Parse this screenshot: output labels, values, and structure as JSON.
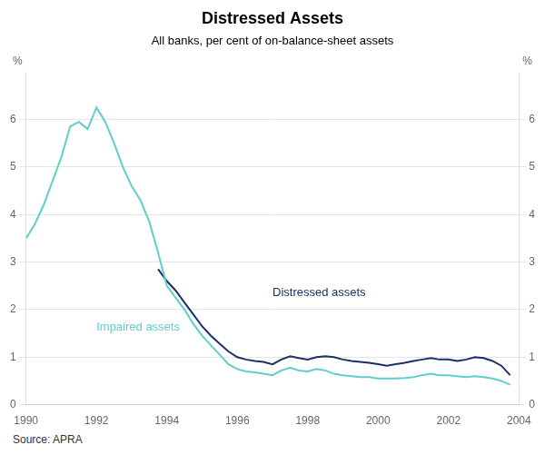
{
  "chart_data": {
    "type": "line",
    "title": "Distressed Assets",
    "subtitle": "All banks, per cent of on-balance-sheet assets",
    "source": "Source: APRA",
    "ylabel": "%",
    "y2label": "%",
    "xlim": [
      1990,
      2004
    ],
    "xticks": [
      1990,
      1992,
      1994,
      1996,
      1998,
      2000,
      2002,
      2004
    ],
    "ylim": [
      0,
      7
    ],
    "yticks": [
      0,
      1,
      2,
      3,
      4,
      5,
      6
    ],
    "y2lim": [
      0,
      7
    ],
    "y2ticks": [
      0,
      1,
      2,
      3,
      4,
      5,
      6
    ],
    "grid": true,
    "series": [
      {
        "name": "Impaired assets",
        "color": "#5ecfca",
        "x": [
          1990.0,
          1990.25,
          1990.5,
          1990.75,
          1991.0,
          1991.25,
          1991.5,
          1991.75,
          1992.0,
          1992.25,
          1992.5,
          1992.75,
          1993.0,
          1993.25,
          1993.5,
          1993.75,
          1994.0,
          1994.25,
          1994.5,
          1994.75,
          1995.0,
          1995.25,
          1995.5,
          1995.75,
          1996.0,
          1996.25,
          1996.5,
          1996.75,
          1997.0,
          1997.25,
          1997.5,
          1997.75,
          1998.0,
          1998.25,
          1998.5,
          1998.75,
          1999.0,
          1999.25,
          1999.5,
          1999.75,
          2000.0,
          2000.25,
          2000.5,
          2000.75,
          2001.0,
          2001.25,
          2001.5,
          2001.75,
          2002.0,
          2002.25,
          2002.5,
          2002.75,
          2003.0,
          2003.25,
          2003.5,
          2003.75
        ],
        "values": [
          3.5,
          3.8,
          4.2,
          4.7,
          5.2,
          5.85,
          5.95,
          5.8,
          6.25,
          5.95,
          5.5,
          5.0,
          4.6,
          4.3,
          3.85,
          3.2,
          2.5,
          2.25,
          2.0,
          1.7,
          1.45,
          1.25,
          1.05,
          0.85,
          0.75,
          0.7,
          0.68,
          0.65,
          0.62,
          0.72,
          0.78,
          0.72,
          0.7,
          0.75,
          0.72,
          0.65,
          0.62,
          0.6,
          0.58,
          0.58,
          0.55,
          0.55,
          0.55,
          0.56,
          0.58,
          0.62,
          0.65,
          0.62,
          0.62,
          0.6,
          0.58,
          0.6,
          0.58,
          0.55,
          0.5,
          0.42
        ]
      },
      {
        "name": "Distressed assets",
        "color": "#1a3068",
        "x": [
          1993.75,
          1994.0,
          1994.25,
          1994.5,
          1994.75,
          1995.0,
          1995.25,
          1995.5,
          1995.75,
          1996.0,
          1996.25,
          1996.5,
          1996.75,
          1997.0,
          1997.25,
          1997.5,
          1997.75,
          1998.0,
          1998.25,
          1998.5,
          1998.75,
          1999.0,
          1999.25,
          1999.5,
          1999.75,
          2000.0,
          2000.25,
          2000.5,
          2000.75,
          2001.0,
          2001.25,
          2001.5,
          2001.75,
          2002.0,
          2002.25,
          2002.5,
          2002.75,
          2003.0,
          2003.25,
          2003.5,
          2003.75
        ],
        "values": [
          2.85,
          2.6,
          2.4,
          2.15,
          1.9,
          1.65,
          1.45,
          1.28,
          1.12,
          1.0,
          0.95,
          0.92,
          0.9,
          0.85,
          0.95,
          1.02,
          0.98,
          0.95,
          1.0,
          1.02,
          1.0,
          0.95,
          0.92,
          0.9,
          0.88,
          0.85,
          0.82,
          0.85,
          0.88,
          0.92,
          0.95,
          0.98,
          0.95,
          0.95,
          0.92,
          0.95,
          1.0,
          0.98,
          0.92,
          0.82,
          0.62
        ]
      }
    ],
    "annotations": [
      {
        "text": "Distressed assets",
        "x": 1997.0,
        "y": 2.35,
        "color": "#1a3068"
      },
      {
        "text": "Impaired assets",
        "x": 1992.0,
        "y": 1.62,
        "color": "#5ecfca"
      }
    ]
  }
}
